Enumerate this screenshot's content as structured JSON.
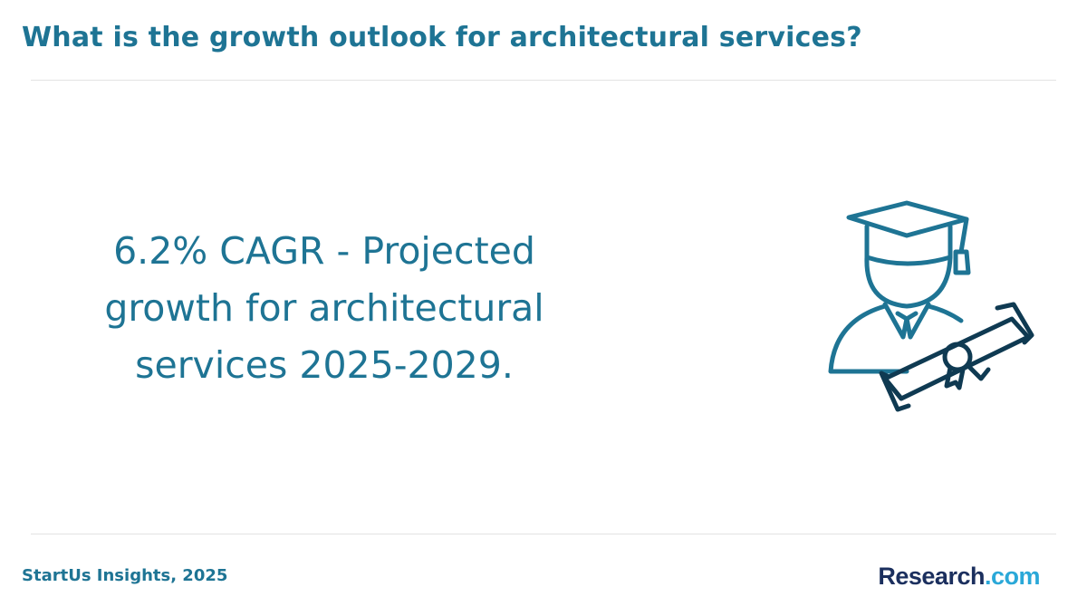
{
  "header": {
    "title": "What is the growth outlook for architectural services?"
  },
  "main": {
    "statistic": "6.2% CAGR - Projected growth for architectural services 2025-2029.",
    "illustration_icon": "graduate-with-diploma-icon"
  },
  "footer": {
    "source": "StartUs Insights, 2025",
    "logo": {
      "main": "Research",
      "suffix": ".com"
    }
  },
  "colors": {
    "accent": "#1e7494",
    "icon_dark": "#0f3a52",
    "logo_dark": "#1b2f5e",
    "logo_light": "#2aa8d8",
    "divider": "#e3e3e3"
  }
}
